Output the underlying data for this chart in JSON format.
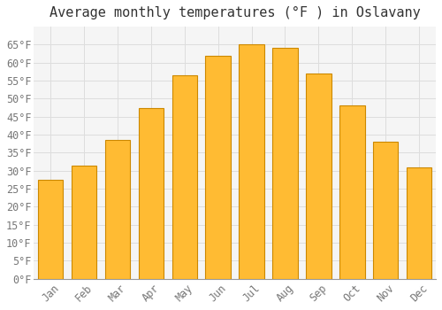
{
  "title": "Average monthly temperatures (°F ) in Oslavany",
  "months": [
    "Jan",
    "Feb",
    "Mar",
    "Apr",
    "May",
    "Jun",
    "Jul",
    "Aug",
    "Sep",
    "Oct",
    "Nov",
    "Dec"
  ],
  "values": [
    27.5,
    31.5,
    38.5,
    47.5,
    56.5,
    62.0,
    65.0,
    64.0,
    57.0,
    48.0,
    38.0,
    31.0
  ],
  "bar_color": "#FFBB33",
  "bar_edge_color": "#CC8800",
  "background_color": "#FFFFFF",
  "plot_bg_color": "#F5F5F5",
  "grid_color": "#DDDDDD",
  "text_color": "#777777",
  "title_color": "#333333",
  "ylim": [
    0,
    70
  ],
  "yticks": [
    0,
    5,
    10,
    15,
    20,
    25,
    30,
    35,
    40,
    45,
    50,
    55,
    60,
    65
  ],
  "title_fontsize": 11,
  "tick_fontsize": 8.5
}
